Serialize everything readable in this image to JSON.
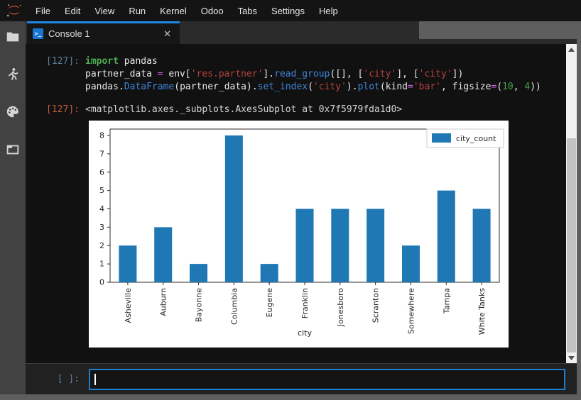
{
  "menubar": {
    "items": [
      "File",
      "Edit",
      "View",
      "Run",
      "Kernel",
      "Odoo",
      "Tabs",
      "Settings",
      "Help"
    ]
  },
  "sidebar": {
    "icons": [
      "files-icon",
      "running-sessions-icon",
      "command-palette-icon",
      "open-tabs-icon"
    ]
  },
  "tab": {
    "label": "Console 1",
    "icon_glyph": ">_",
    "close_label": "✕"
  },
  "console": {
    "code_cell": {
      "prompt": "[127]:",
      "lines": [
        [
          {
            "t": "import",
            "c": "keyword"
          },
          {
            "t": " pandas",
            "c": "plain"
          }
        ],
        [
          {
            "t": "partner_data ",
            "c": "plain"
          },
          {
            "t": "=",
            "c": "operator"
          },
          {
            "t": " env[",
            "c": "plain"
          },
          {
            "t": "'res.partner'",
            "c": "string"
          },
          {
            "t": "].",
            "c": "plain"
          },
          {
            "t": "read_group",
            "c": "method"
          },
          {
            "t": "([], [",
            "c": "plain"
          },
          {
            "t": "'city'",
            "c": "string"
          },
          {
            "t": "], [",
            "c": "plain"
          },
          {
            "t": "'city'",
            "c": "string"
          },
          {
            "t": "])",
            "c": "plain"
          }
        ],
        [
          {
            "t": "pandas.",
            "c": "plain"
          },
          {
            "t": "DataFrame",
            "c": "method"
          },
          {
            "t": "(partner_data).",
            "c": "plain"
          },
          {
            "t": "set_index",
            "c": "method"
          },
          {
            "t": "(",
            "c": "plain"
          },
          {
            "t": "'city'",
            "c": "string"
          },
          {
            "t": ").",
            "c": "plain"
          },
          {
            "t": "plot",
            "c": "method"
          },
          {
            "t": "(kind",
            "c": "plain"
          },
          {
            "t": "=",
            "c": "operator"
          },
          {
            "t": "'bar'",
            "c": "string"
          },
          {
            "t": ", figsize",
            "c": "plain"
          },
          {
            "t": "=",
            "c": "operator"
          },
          {
            "t": "(",
            "c": "plain"
          },
          {
            "t": "10",
            "c": "number"
          },
          {
            "t": ", ",
            "c": "plain"
          },
          {
            "t": "4",
            "c": "number"
          },
          {
            "t": "))",
            "c": "plain"
          }
        ]
      ]
    },
    "output_cell": {
      "prompt": "[127]:",
      "text": "<matplotlib.axes._subplots.AxesSubplot at 0x7f5979fda1d0>"
    },
    "input_cell": {
      "prompt": "[ ]:",
      "value": ""
    }
  },
  "editor": {
    "token_colors": {
      "plain": "#e8e8e8",
      "keyword": "#4caf50",
      "operator": "#cf68e1",
      "string": "#b5423e",
      "method": "#3d84d9",
      "number": "#43a047"
    }
  },
  "chart_data": {
    "type": "bar",
    "categories": [
      "Asheville",
      "Auburn",
      "Bayonne",
      "Columbia",
      "Eugene",
      "Franklin",
      "Jonesboro",
      "Scranton",
      "Somewhere",
      "Tampa",
      "White Tanks"
    ],
    "values": [
      2,
      3,
      1,
      8,
      1,
      4,
      4,
      4,
      2,
      5,
      4
    ],
    "series_name": "city_count",
    "title": "",
    "xlabel": "city",
    "ylabel": "",
    "ylim": [
      0,
      8.4
    ],
    "yticks": [
      0,
      1,
      2,
      3,
      4,
      5,
      6,
      7,
      8
    ],
    "bar_color": "#1f77b4",
    "background": "#ffffff",
    "legend_position": "upper right",
    "grid": false,
    "x_tick_rotation": 90
  },
  "colors": {
    "accent_blue": "#1e88e5",
    "input_border": "#1f7ecb",
    "in_prompt": "#5f7e97",
    "out_prompt": "#bf5b3d",
    "frame_gray": "#5e5e5e",
    "sidebar_gray": "#424242",
    "logo_orange": "#e8612c"
  }
}
